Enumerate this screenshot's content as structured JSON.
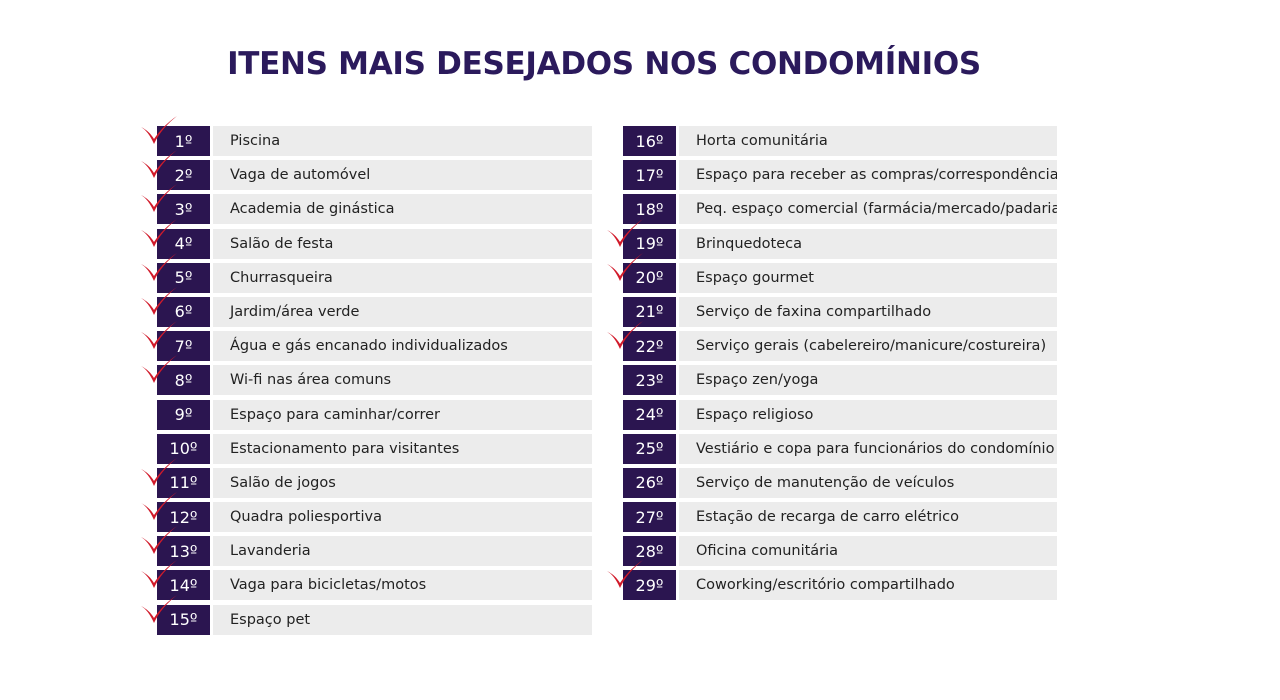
{
  "title": "ITENS MAIS DESEJADOS NOS CONDOMÍNIOS",
  "colors": {
    "title": "#2b1a5c",
    "badge_bg": "#2b1550",
    "row_bg": "#ececec",
    "check": "#d11a2a"
  },
  "check_icon": "red-checkmark",
  "ranking": [
    {
      "rank": "1º",
      "label": "Piscina",
      "checked": true
    },
    {
      "rank": "2º",
      "label": "Vaga de automóvel",
      "checked": true
    },
    {
      "rank": "3º",
      "label": "Academia de ginástica",
      "checked": true
    },
    {
      "rank": "4º",
      "label": "Salão de festa",
      "checked": true
    },
    {
      "rank": "5º",
      "label": "Churrasqueira",
      "checked": true
    },
    {
      "rank": "6º",
      "label": "Jardim/área verde",
      "checked": true
    },
    {
      "rank": "7º",
      "label": "Água e gás encanado individualizados",
      "checked": true
    },
    {
      "rank": "8º",
      "label": "Wi-fi nas área comuns",
      "checked": true
    },
    {
      "rank": "9º",
      "label": "Espaço para caminhar/correr",
      "checked": false
    },
    {
      "rank": "10º",
      "label": "Estacionamento para visitantes",
      "checked": false
    },
    {
      "rank": "11º",
      "label": "Salão de jogos",
      "checked": true
    },
    {
      "rank": "12º",
      "label": "Quadra poliesportiva",
      "checked": true
    },
    {
      "rank": "13º",
      "label": "Lavanderia",
      "checked": true
    },
    {
      "rank": "14º",
      "label": "Vaga para bicicletas/motos",
      "checked": true
    },
    {
      "rank": "15º",
      "label": "Espaço pet",
      "checked": true
    },
    {
      "rank": "16º",
      "label": "Horta comunitária",
      "checked": false
    },
    {
      "rank": "17º",
      "label": "Espaço para receber as compras/correspondências",
      "checked": false
    },
    {
      "rank": "18º",
      "label": "Peq. espaço comercial (farmácia/mercado/padaria)",
      "checked": false
    },
    {
      "rank": "19º",
      "label": "Brinquedoteca",
      "checked": true
    },
    {
      "rank": "20º",
      "label": "Espaço gourmet",
      "checked": true
    },
    {
      "rank": "21º",
      "label": "Serviço de faxina compartilhado",
      "checked": false
    },
    {
      "rank": "22º",
      "label": "Serviço gerais (cabelereiro/manicure/costureira)",
      "checked": true
    },
    {
      "rank": "23º",
      "label": "Espaço zen/yoga",
      "checked": false
    },
    {
      "rank": "24º",
      "label": "Espaço religioso",
      "checked": false
    },
    {
      "rank": "25º",
      "label": "Vestiário e copa para funcionários do condomínio",
      "checked": false
    },
    {
      "rank": "26º",
      "label": "Serviço de manutenção de veículos",
      "checked": false
    },
    {
      "rank": "27º",
      "label": "Estação de recarga de carro elétrico",
      "checked": false
    },
    {
      "rank": "28º",
      "label": "Oficina comunitária",
      "checked": false
    },
    {
      "rank": "29º",
      "label": "Coworking/escritório compartilhado",
      "checked": true
    }
  ]
}
